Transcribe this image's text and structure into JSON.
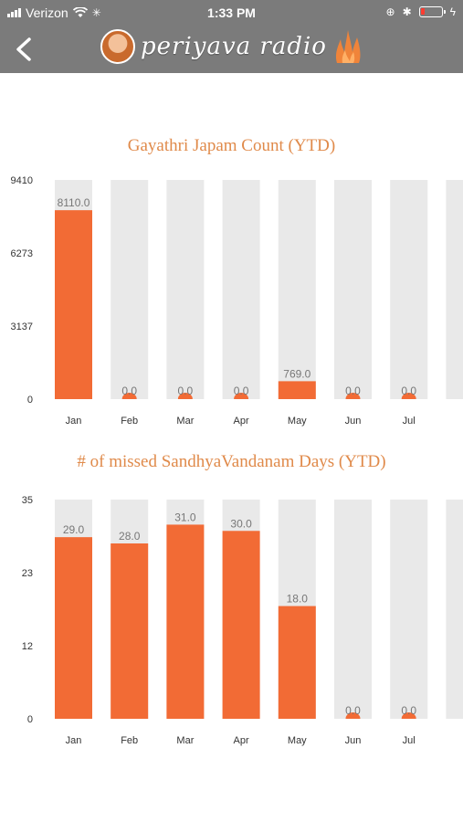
{
  "status_bar": {
    "carrier": "Verizon",
    "time": "1:33 PM"
  },
  "header": {
    "title": "periyava radio"
  },
  "colors": {
    "bar": "#f26b35",
    "track": "#e9e9e9",
    "title": "#e08a4a",
    "header": "#7b7b7b"
  },
  "icons": {
    "back": "chevron-left-icon",
    "wifi": "wifi-icon",
    "loading": "activity-spinner-icon",
    "lock": "orientation-lock-icon",
    "bluetooth": "bluetooth-icon",
    "battery": "battery-icon",
    "charging": "charging-bolt-icon",
    "avatar": "avatar-icon",
    "flame": "flame-logo-icon"
  },
  "chart_data": [
    {
      "type": "bar",
      "title": "Gayathri Japam Count (YTD)",
      "categories": [
        "Jan",
        "Feb",
        "Mar",
        "Apr",
        "May",
        "Jun",
        "Jul"
      ],
      "values": [
        8110.0,
        0.0,
        0.0,
        0.0,
        769.0,
        0.0,
        0.0
      ],
      "value_labels": [
        "8110.0",
        "0.0",
        "0.0",
        "0.0",
        "769.0",
        "0.0",
        "0.0"
      ],
      "yticks": [
        "0",
        "3137",
        "6273",
        "9410"
      ],
      "ylim": [
        0,
        9410
      ],
      "grid": false
    },
    {
      "type": "bar",
      "title": "# of missed SandhyaVandanam Days (YTD)",
      "categories": [
        "Jan",
        "Feb",
        "Mar",
        "Apr",
        "May",
        "Jun",
        "Jul"
      ],
      "values": [
        29.0,
        28.0,
        31.0,
        30.0,
        18.0,
        0.0,
        0.0
      ],
      "value_labels": [
        "29.0",
        "28.0",
        "31.0",
        "30.0",
        "18.0",
        "0.0",
        "0.0"
      ],
      "yticks": [
        "0",
        "12",
        "23",
        "35"
      ],
      "ylim": [
        0,
        35
      ],
      "grid": false
    }
  ]
}
